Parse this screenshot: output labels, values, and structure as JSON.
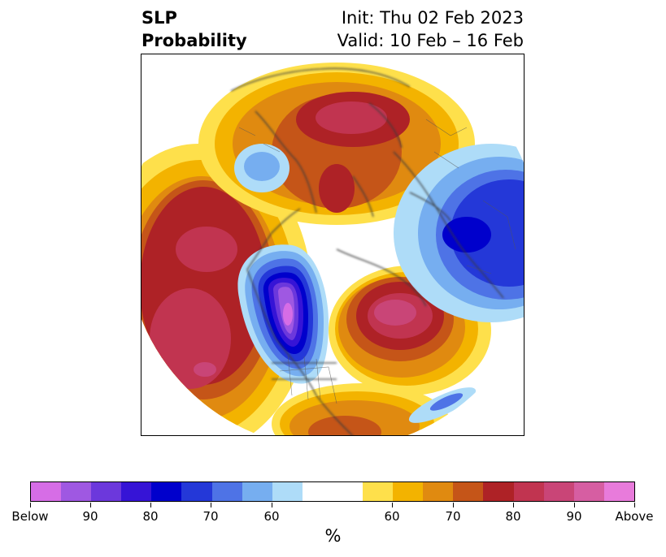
{
  "title": {
    "left_line1": "SLP",
    "left_line2": "Probability",
    "right_line1": "Init: Thu 02 Feb 2023",
    "right_line2": "Valid: 10 Feb – 16 Feb"
  },
  "colorbar": {
    "segments": [
      "#d66de6",
      "#9f58e2",
      "#6c38dc",
      "#3614d6",
      "#0000cc",
      "#2438d8",
      "#4e73e6",
      "#76aef0",
      "#aedcf8",
      "#ffffff",
      "#fee04b",
      "#f3b300",
      "#e08a10",
      "#c55518",
      "#ae2226",
      "#c13450",
      "#c94577",
      "#d65ea2",
      "#e87bdb"
    ],
    "tick_labels": [
      "Below",
      "90",
      "80",
      "70",
      "60",
      "60",
      "70",
      "80",
      "90",
      "Above"
    ],
    "label": "%"
  }
}
